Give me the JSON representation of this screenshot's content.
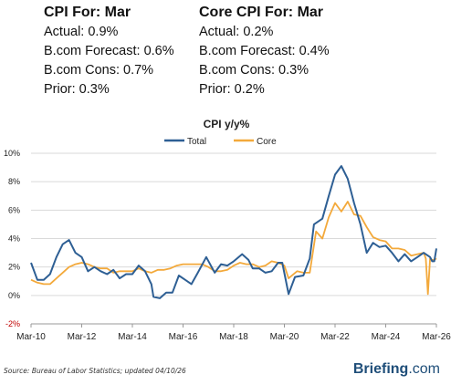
{
  "cpi": {
    "title": "CPI For: Mar",
    "lines": [
      "Actual: 0.9%",
      "B.com Forecast: 0.6%",
      "B.com Cons: 0.7%",
      "Prior: 0.3%"
    ]
  },
  "core": {
    "title": "Core CPI For: Mar",
    "lines": [
      "Actual: 0.2%",
      "B.com Forecast: 0.4%",
      "B.com Cons: 0.3%",
      "Prior: 0.2%"
    ]
  },
  "footer": {
    "source": "Source: Bureau of Labor Statistics; updated 04/10/26",
    "brand_bold": "Briefing",
    "brand_suffix": ".com"
  },
  "colors": {
    "total": "#2e5f94",
    "core": "#f3a93b",
    "grid": "#d9d9d9"
  },
  "chart_data": {
    "type": "line",
    "title": "CPI y/y%",
    "legend_position": "top-center",
    "grid": true,
    "x_tick_labels": [
      "Mar-10",
      "Mar-12",
      "Mar-14",
      "Mar-16",
      "Mar-18",
      "Mar-20",
      "Mar-22",
      "Mar-24",
      "Mar-26"
    ],
    "y_tick_labels": [
      "-2%",
      "0%",
      "2%",
      "4%",
      "6%",
      "8%",
      "10%"
    ],
    "ylim": [
      -2,
      10
    ],
    "xlim": [
      "2010-03",
      "2026-03"
    ],
    "series": [
      {
        "name": "Total",
        "points": [
          [
            "2010-03",
            2.3
          ],
          [
            "2010-06",
            1.1
          ],
          [
            "2010-09",
            1.1
          ],
          [
            "2010-12",
            1.5
          ],
          [
            "2011-03",
            2.7
          ],
          [
            "2011-06",
            3.6
          ],
          [
            "2011-09",
            3.9
          ],
          [
            "2011-12",
            3.0
          ],
          [
            "2012-03",
            2.7
          ],
          [
            "2012-06",
            1.7
          ],
          [
            "2012-09",
            2.0
          ],
          [
            "2012-12",
            1.7
          ],
          [
            "2013-03",
            1.5
          ],
          [
            "2013-06",
            1.8
          ],
          [
            "2013-09",
            1.2
          ],
          [
            "2013-12",
            1.5
          ],
          [
            "2014-03",
            1.5
          ],
          [
            "2014-06",
            2.1
          ],
          [
            "2014-09",
            1.7
          ],
          [
            "2014-12",
            0.8
          ],
          [
            "2015-01",
            -0.1
          ],
          [
            "2015-04",
            -0.2
          ],
          [
            "2015-07",
            0.2
          ],
          [
            "2015-10",
            0.2
          ],
          [
            "2016-01",
            1.4
          ],
          [
            "2016-04",
            1.1
          ],
          [
            "2016-07",
            0.8
          ],
          [
            "2016-10",
            1.6
          ],
          [
            "2017-02",
            2.7
          ],
          [
            "2017-06",
            1.6
          ],
          [
            "2017-09",
            2.2
          ],
          [
            "2017-12",
            2.1
          ],
          [
            "2018-03",
            2.4
          ],
          [
            "2018-07",
            2.9
          ],
          [
            "2018-10",
            2.5
          ],
          [
            "2018-12",
            1.9
          ],
          [
            "2019-03",
            1.9
          ],
          [
            "2019-06",
            1.6
          ],
          [
            "2019-09",
            1.7
          ],
          [
            "2019-12",
            2.3
          ],
          [
            "2020-02",
            2.3
          ],
          [
            "2020-05",
            0.1
          ],
          [
            "2020-08",
            1.3
          ],
          [
            "2020-12",
            1.4
          ],
          [
            "2021-03",
            2.6
          ],
          [
            "2021-05",
            5.0
          ],
          [
            "2021-09",
            5.4
          ],
          [
            "2021-12",
            7.0
          ],
          [
            "2022-03",
            8.5
          ],
          [
            "2022-06",
            9.1
          ],
          [
            "2022-09",
            8.2
          ],
          [
            "2022-12",
            6.5
          ],
          [
            "2023-03",
            5.0
          ],
          [
            "2023-06",
            3.0
          ],
          [
            "2023-09",
            3.7
          ],
          [
            "2023-12",
            3.4
          ],
          [
            "2024-03",
            3.5
          ],
          [
            "2024-06",
            3.0
          ],
          [
            "2024-09",
            2.4
          ],
          [
            "2024-12",
            2.9
          ],
          [
            "2025-03",
            2.4
          ],
          [
            "2025-06",
            2.7
          ],
          [
            "2025-09",
            3.0
          ],
          [
            "2025-12",
            2.7
          ],
          [
            "2026-01",
            2.4
          ],
          [
            "2026-02",
            2.4
          ],
          [
            "2026-03",
            3.3
          ]
        ]
      },
      {
        "name": "Core",
        "points": [
          [
            "2010-03",
            1.1
          ],
          [
            "2010-06",
            0.9
          ],
          [
            "2010-09",
            0.8
          ],
          [
            "2010-12",
            0.8
          ],
          [
            "2011-03",
            1.2
          ],
          [
            "2011-06",
            1.6
          ],
          [
            "2011-09",
            2.0
          ],
          [
            "2011-12",
            2.2
          ],
          [
            "2012-03",
            2.3
          ],
          [
            "2012-06",
            2.2
          ],
          [
            "2012-09",
            2.0
          ],
          [
            "2012-12",
            1.9
          ],
          [
            "2013-03",
            1.9
          ],
          [
            "2013-06",
            1.6
          ],
          [
            "2013-09",
            1.7
          ],
          [
            "2013-12",
            1.7
          ],
          [
            "2014-03",
            1.7
          ],
          [
            "2014-06",
            1.9
          ],
          [
            "2014-09",
            1.7
          ],
          [
            "2014-12",
            1.6
          ],
          [
            "2015-03",
            1.8
          ],
          [
            "2015-06",
            1.8
          ],
          [
            "2015-09",
            1.9
          ],
          [
            "2015-12",
            2.1
          ],
          [
            "2016-03",
            2.2
          ],
          [
            "2016-06",
            2.2
          ],
          [
            "2016-09",
            2.2
          ],
          [
            "2016-12",
            2.2
          ],
          [
            "2017-03",
            2.0
          ],
          [
            "2017-06",
            1.7
          ],
          [
            "2017-09",
            1.7
          ],
          [
            "2017-12",
            1.8
          ],
          [
            "2018-03",
            2.1
          ],
          [
            "2018-06",
            2.3
          ],
          [
            "2018-09",
            2.2
          ],
          [
            "2018-12",
            2.2
          ],
          [
            "2019-03",
            2.0
          ],
          [
            "2019-06",
            2.1
          ],
          [
            "2019-09",
            2.4
          ],
          [
            "2019-12",
            2.3
          ],
          [
            "2020-03",
            2.1
          ],
          [
            "2020-05",
            1.2
          ],
          [
            "2020-09",
            1.7
          ],
          [
            "2020-12",
            1.6
          ],
          [
            "2021-03",
            1.6
          ],
          [
            "2021-06",
            4.5
          ],
          [
            "2021-09",
            4.0
          ],
          [
            "2021-12",
            5.5
          ],
          [
            "2022-03",
            6.5
          ],
          [
            "2022-06",
            5.9
          ],
          [
            "2022-09",
            6.6
          ],
          [
            "2022-12",
            5.7
          ],
          [
            "2023-03",
            5.6
          ],
          [
            "2023-06",
            4.8
          ],
          [
            "2023-09",
            4.1
          ],
          [
            "2023-12",
            3.9
          ],
          [
            "2024-03",
            3.8
          ],
          [
            "2024-06",
            3.3
          ],
          [
            "2024-09",
            3.3
          ],
          [
            "2024-12",
            3.2
          ],
          [
            "2025-03",
            2.8
          ],
          [
            "2025-06",
            2.9
          ],
          [
            "2025-09",
            3.0
          ],
          [
            "2025-10",
            2.6
          ],
          [
            "2025-11",
            0.1
          ],
          [
            "2025-12",
            2.6
          ],
          [
            "2026-01",
            2.5
          ],
          [
            "2026-02",
            2.5
          ],
          [
            "2026-03",
            2.6
          ]
        ]
      }
    ]
  }
}
